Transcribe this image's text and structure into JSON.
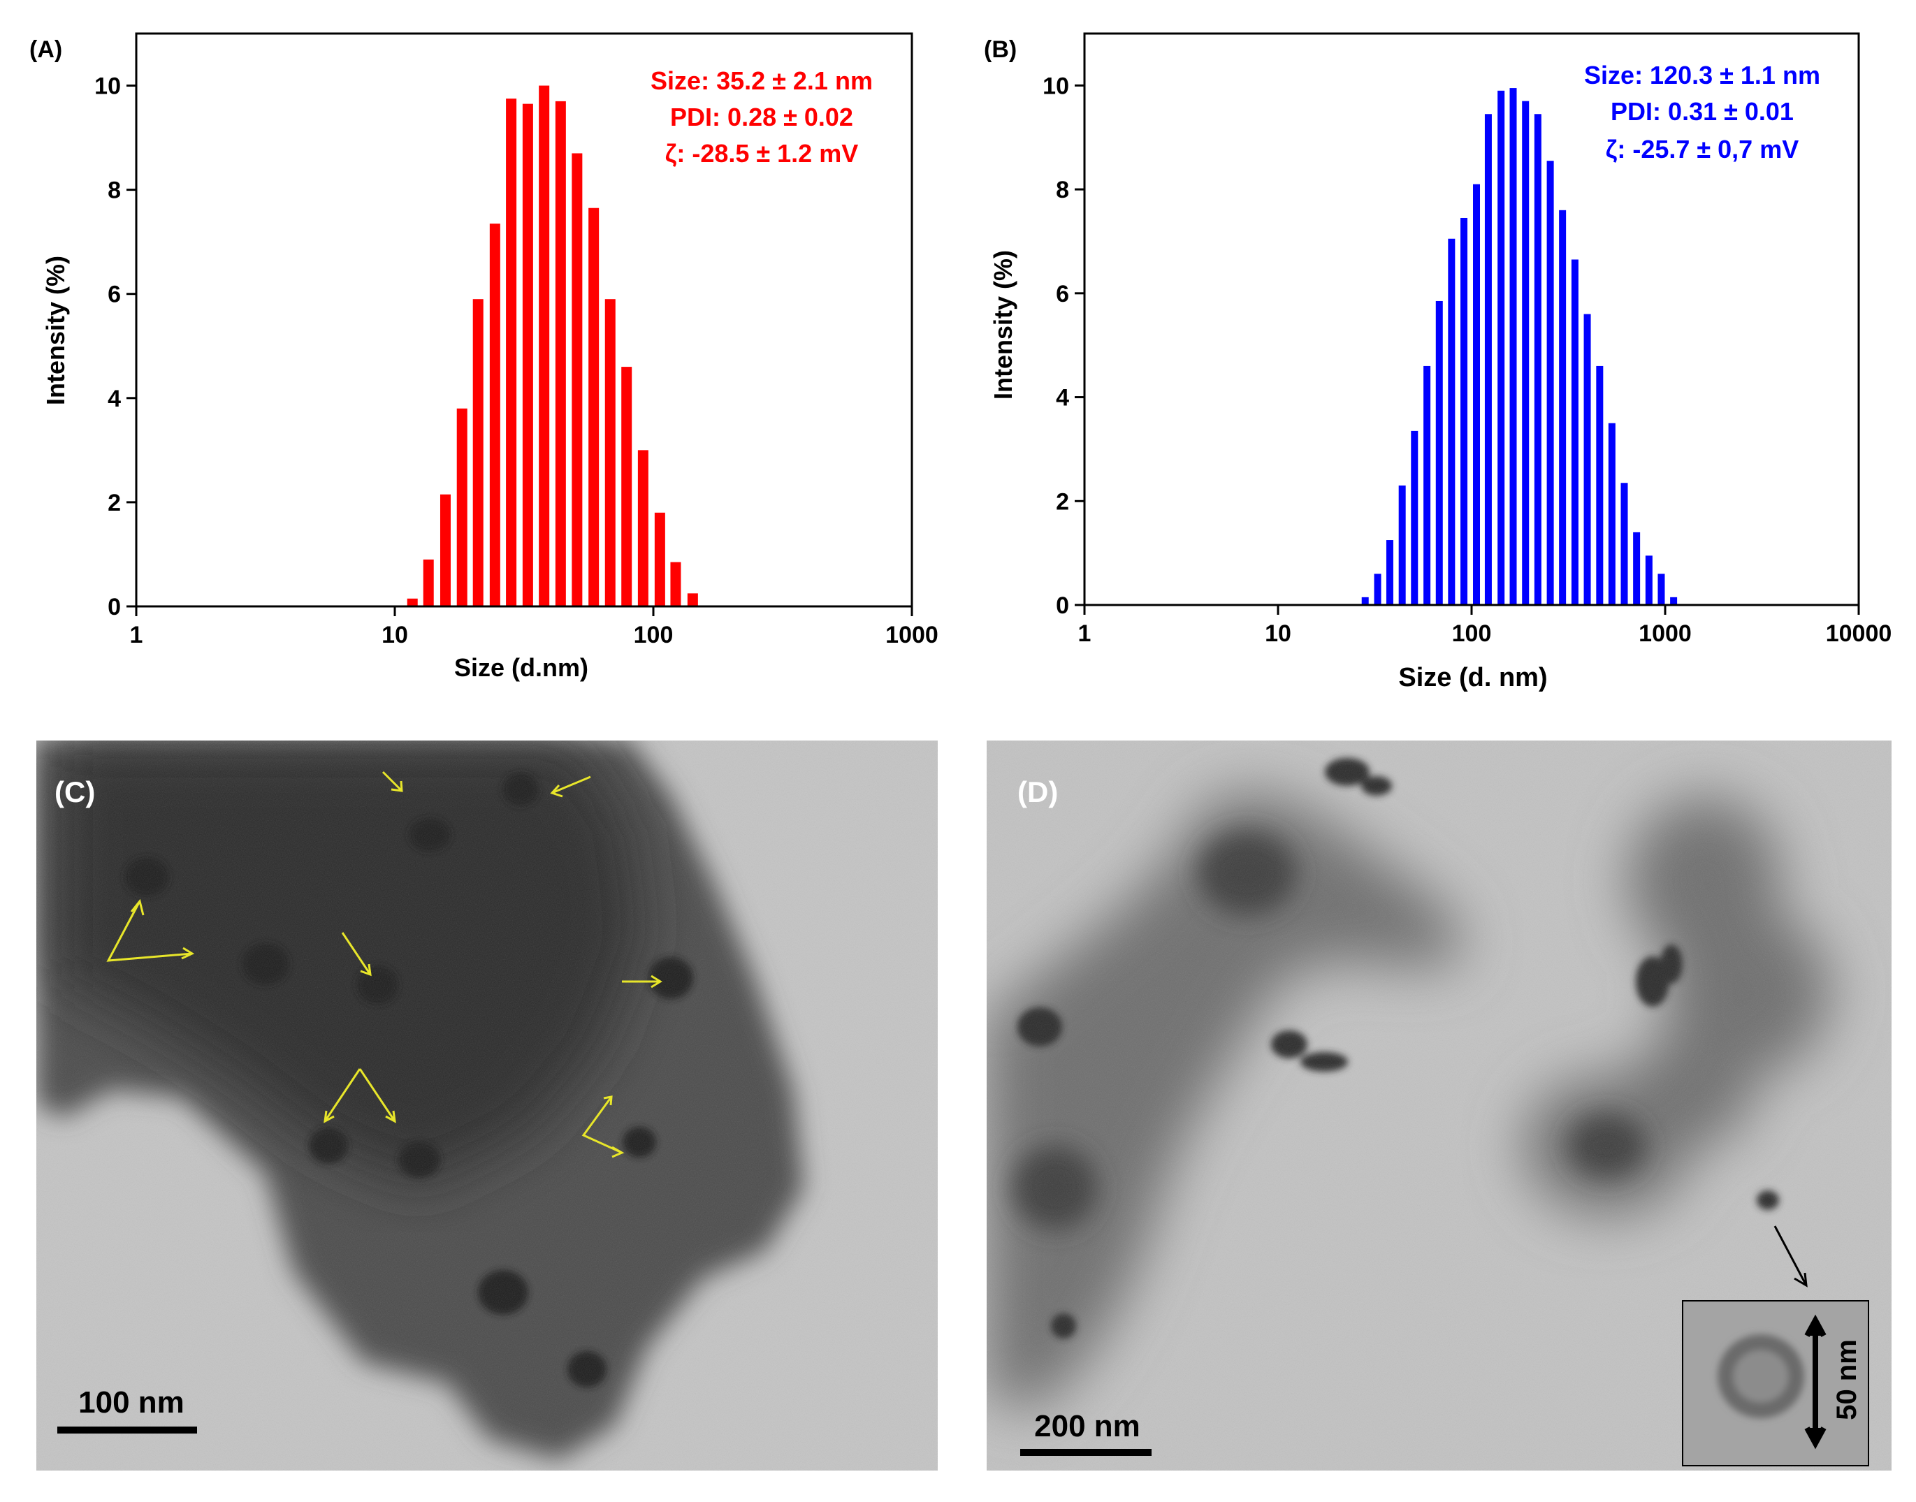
{
  "chart_data": [
    {
      "type": "bar",
      "panel_label": "(A)",
      "xlabel": "Size (d.nm)",
      "ylabel": "Intensity (%)",
      "x_scale": "log",
      "xlim": [
        1,
        1000
      ],
      "ylim": [
        0,
        11
      ],
      "x_tick_labels": [
        "1",
        "10",
        "100",
        "1000"
      ],
      "y_tick_labels": [
        "0",
        "2",
        "4",
        "6",
        "8",
        "10"
      ],
      "grid": false,
      "color": "#ff0000",
      "annotation": [
        "Size: 35.2 ± 2.1 nm",
        "PDI: 0.28 ± 0.02",
        "ζ: -28.5  ± 1.2 mV"
      ],
      "x": [
        11.7,
        13.5,
        15.7,
        18.2,
        21.0,
        24.4,
        28.2,
        32.7,
        37.8,
        43.8,
        50.7,
        58.8,
        68.1,
        78.8,
        91.3,
        106,
        122,
        142
      ],
      "values": [
        0.15,
        0.9,
        2.15,
        3.8,
        5.9,
        7.35,
        9.75,
        9.65,
        10.0,
        9.7,
        8.7,
        7.65,
        5.9,
        4.6,
        3.0,
        1.8,
        0.85,
        0.25
      ]
    },
    {
      "type": "bar",
      "panel_label": "(B)",
      "xlabel": "Size (d. nm)",
      "ylabel": "Intensity (%)",
      "x_scale": "log",
      "xlim": [
        1,
        10000
      ],
      "ylim": [
        0,
        11
      ],
      "x_tick_labels": [
        "1",
        "10",
        "100",
        "1000",
        "10000"
      ],
      "y_tick_labels": [
        "0",
        "2",
        "4",
        "6",
        "8",
        "10"
      ],
      "grid": false,
      "color": "#0000ff",
      "annotation": [
        "Size: 120.3 ± 1.1 nm",
        "PDI: 0.31 ± 0.01",
        "ζ: -25.7  ± 0,7 mV"
      ],
      "x": [
        28.2,
        32.7,
        37.8,
        43.8,
        50.7,
        58.8,
        68.1,
        78.8,
        91.3,
        106,
        122,
        142,
        164,
        190,
        220,
        255,
        295,
        342,
        396,
        459,
        531,
        615,
        712,
        825,
        955,
        1106
      ],
      "values": [
        0.15,
        0.6,
        1.25,
        2.3,
        3.35,
        4.6,
        5.85,
        7.05,
        7.45,
        8.1,
        9.45,
        9.9,
        9.95,
        9.7,
        9.45,
        8.55,
        7.6,
        6.65,
        5.6,
        4.6,
        3.5,
        2.35,
        1.4,
        0.95,
        0.6,
        0.15
      ]
    }
  ],
  "tem": [
    {
      "panel_label": "(C)",
      "scale_bar_label": "100 nm",
      "scale_bar_fraction": 0.155
    },
    {
      "panel_label": "(D)",
      "scale_bar_label": "200 nm",
      "scale_bar_fraction": 0.145,
      "inset_label": "50 nm"
    }
  ],
  "colors": {
    "arrow_yellow": "#e8e62a",
    "axis": "#000000"
  }
}
